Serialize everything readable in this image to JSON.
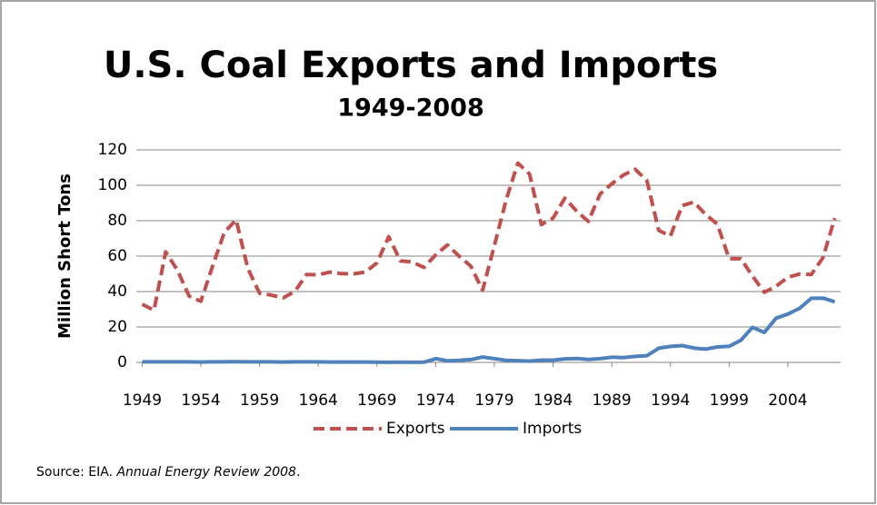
{
  "chart_data": {
    "type": "line",
    "title": "U.S. Coal Exports and Imports",
    "subtitle": "1949-2008",
    "y_label": "Million Short Tons",
    "source": {
      "prefix": "Source: EIA. ",
      "italic": "Annual Energy Review  2008",
      "suffix": "."
    },
    "x": [
      1949,
      1950,
      1951,
      1952,
      1953,
      1954,
      1955,
      1956,
      1957,
      1958,
      1959,
      1960,
      1961,
      1962,
      1963,
      1964,
      1965,
      1966,
      1967,
      1968,
      1969,
      1970,
      1971,
      1972,
      1973,
      1974,
      1975,
      1976,
      1977,
      1978,
      1979,
      1980,
      1981,
      1982,
      1983,
      1984,
      1985,
      1986,
      1987,
      1988,
      1989,
      1990,
      1991,
      1992,
      1993,
      1994,
      1995,
      1996,
      1997,
      1998,
      1999,
      2000,
      2001,
      2002,
      2003,
      2004,
      2005,
      2006,
      2007,
      2008
    ],
    "xlim": [
      1948.5,
      2008.5
    ],
    "xticks": [
      1949,
      1954,
      1959,
      1964,
      1969,
      1974,
      1979,
      1984,
      1989,
      1994,
      1999,
      2004
    ],
    "ylim": [
      0,
      120
    ],
    "yticks": [
      0,
      20,
      40,
      60,
      80,
      100,
      120
    ],
    "grid": true,
    "legend": "bottom",
    "series": [
      {
        "name": "Exports",
        "color": "#c0504d",
        "dash": true,
        "values": [
          32.8,
          29.4,
          62.4,
          52.1,
          37.4,
          34.5,
          54.4,
          73.5,
          80.5,
          53.0,
          39.0,
          38.0,
          36.4,
          40.0,
          49.6,
          49.5,
          51.0,
          50.1,
          50.0,
          51.0,
          56.2,
          71.0,
          57.3,
          56.7,
          53.6,
          60.7,
          66.3,
          60.0,
          54.3,
          40.7,
          66.0,
          91.7,
          112.5,
          106.3,
          77.8,
          81.5,
          92.7,
          85.5,
          79.6,
          95.0,
          100.8,
          105.8,
          109.0,
          102.5,
          74.5,
          71.4,
          88.5,
          90.5,
          83.5,
          78.0,
          58.5,
          58.5,
          48.7,
          39.6,
          43.0,
          48.0,
          49.9,
          49.6,
          59.2,
          81.5
        ]
      },
      {
        "name": "Imports",
        "color": "#4f81bd",
        "dash": false,
        "values": [
          0.3,
          0.3,
          0.3,
          0.3,
          0.3,
          0.2,
          0.3,
          0.3,
          0.4,
          0.3,
          0.3,
          0.3,
          0.2,
          0.3,
          0.3,
          0.3,
          0.2,
          0.2,
          0.2,
          0.2,
          0.1,
          0.04,
          0.1,
          0.05,
          0.1,
          2.1,
          0.9,
          1.2,
          1.6,
          3.0,
          2.1,
          1.2,
          1.0,
          0.7,
          1.3,
          1.3,
          2.0,
          2.2,
          1.7,
          2.1,
          2.9,
          2.7,
          3.4,
          3.8,
          8.0,
          9.0,
          9.5,
          8.1,
          7.5,
          8.7,
          9.1,
          12.5,
          19.8,
          16.9,
          25.0,
          27.3,
          30.5,
          36.2,
          36.3,
          34.2
        ]
      }
    ]
  }
}
